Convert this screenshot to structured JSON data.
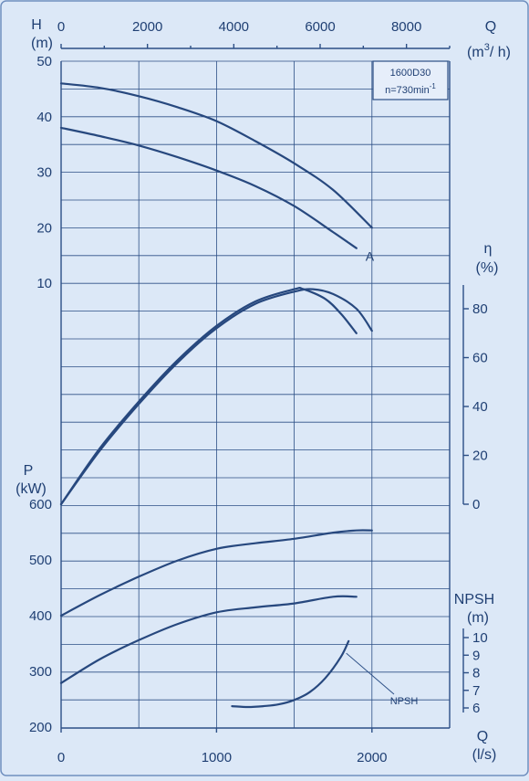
{
  "chart_data": {
    "type": "line",
    "title": "",
    "model_box": {
      "line1": "1600D30",
      "line2_prefix": "n=730min",
      "line2_exp": "-1"
    },
    "axes": {
      "top_q": {
        "label": "Q",
        "unit_base": "(m",
        "unit_exp": "3",
        "unit_tail": "/ h)",
        "range": [
          0,
          9000
        ],
        "ticks": [
          0,
          2000,
          4000,
          6000,
          8000
        ]
      },
      "bottom_q": {
        "label": "Q",
        "unit": "(l/s)",
        "range": [
          0,
          2500
        ],
        "ticks": [
          0,
          1000,
          2000
        ]
      },
      "head": {
        "label": "H",
        "unit": "(m)",
        "range": [
          0,
          50
        ],
        "ticks": [
          10,
          20,
          30,
          40,
          50
        ]
      },
      "efficiency": {
        "label": "η",
        "unit": "(%)",
        "range": [
          0,
          90
        ],
        "ticks": [
          0,
          20,
          40,
          60,
          80
        ]
      },
      "power": {
        "label": "P",
        "unit": "(kW)",
        "range": [
          200,
          600
        ],
        "ticks": [
          200,
          300,
          400,
          500,
          600
        ]
      },
      "npsh": {
        "label": "NPSH",
        "unit": "(m)",
        "range": [
          6,
          10
        ],
        "ticks": [
          6,
          7,
          8,
          9,
          10
        ]
      }
    },
    "series": [
      {
        "group": "head",
        "label": "",
        "x": [
          0,
          250,
          500,
          750,
          1000,
          1250,
          1500,
          1750,
          2000
        ],
        "y": [
          46,
          45.2,
          43.7,
          41.7,
          39.2,
          35.6,
          31.6,
          26.8,
          20
        ]
      },
      {
        "group": "head",
        "label": "A",
        "x": [
          0,
          250,
          500,
          750,
          1000,
          1250,
          1500,
          1750,
          1900
        ],
        "y": [
          38,
          36.5,
          34.8,
          32.7,
          30.3,
          27.5,
          23.9,
          19.2,
          16.3
        ]
      },
      {
        "group": "efficiency",
        "label": "",
        "x": [
          0,
          250,
          500,
          750,
          1000,
          1250,
          1500,
          1620,
          1750,
          1900,
          2000
        ],
        "y": [
          0,
          22,
          41,
          58,
          72,
          82,
          87,
          88,
          86,
          80,
          71
        ]
      },
      {
        "group": "efficiency",
        "label": "",
        "x": [
          0,
          250,
          500,
          750,
          1000,
          1250,
          1500,
          1560,
          1700,
          1800,
          1900
        ],
        "y": [
          0,
          23,
          42,
          59,
          73,
          83,
          88,
          88,
          84,
          78,
          70
        ]
      },
      {
        "group": "power",
        "label": "",
        "x": [
          0,
          250,
          500,
          750,
          1000,
          1250,
          1500,
          1750,
          1900,
          2000
        ],
        "y": [
          400,
          437,
          470,
          499,
          520,
          530,
          538,
          549,
          553,
          553
        ]
      },
      {
        "group": "power",
        "label": "",
        "x": [
          0,
          250,
          500,
          750,
          1000,
          1250,
          1500,
          1750,
          1900
        ],
        "y": [
          279,
          322,
          356,
          385,
          406,
          415,
          422,
          434,
          434
        ]
      },
      {
        "group": "npsh",
        "label": "NPSH",
        "x": [
          1100,
          1200,
          1300,
          1400,
          1500,
          1600,
          1700,
          1800,
          1850
        ],
        "y": [
          6.1,
          6.05,
          6.1,
          6.2,
          6.45,
          6.9,
          7.7,
          8.9,
          9.8
        ]
      }
    ],
    "grid": true
  }
}
